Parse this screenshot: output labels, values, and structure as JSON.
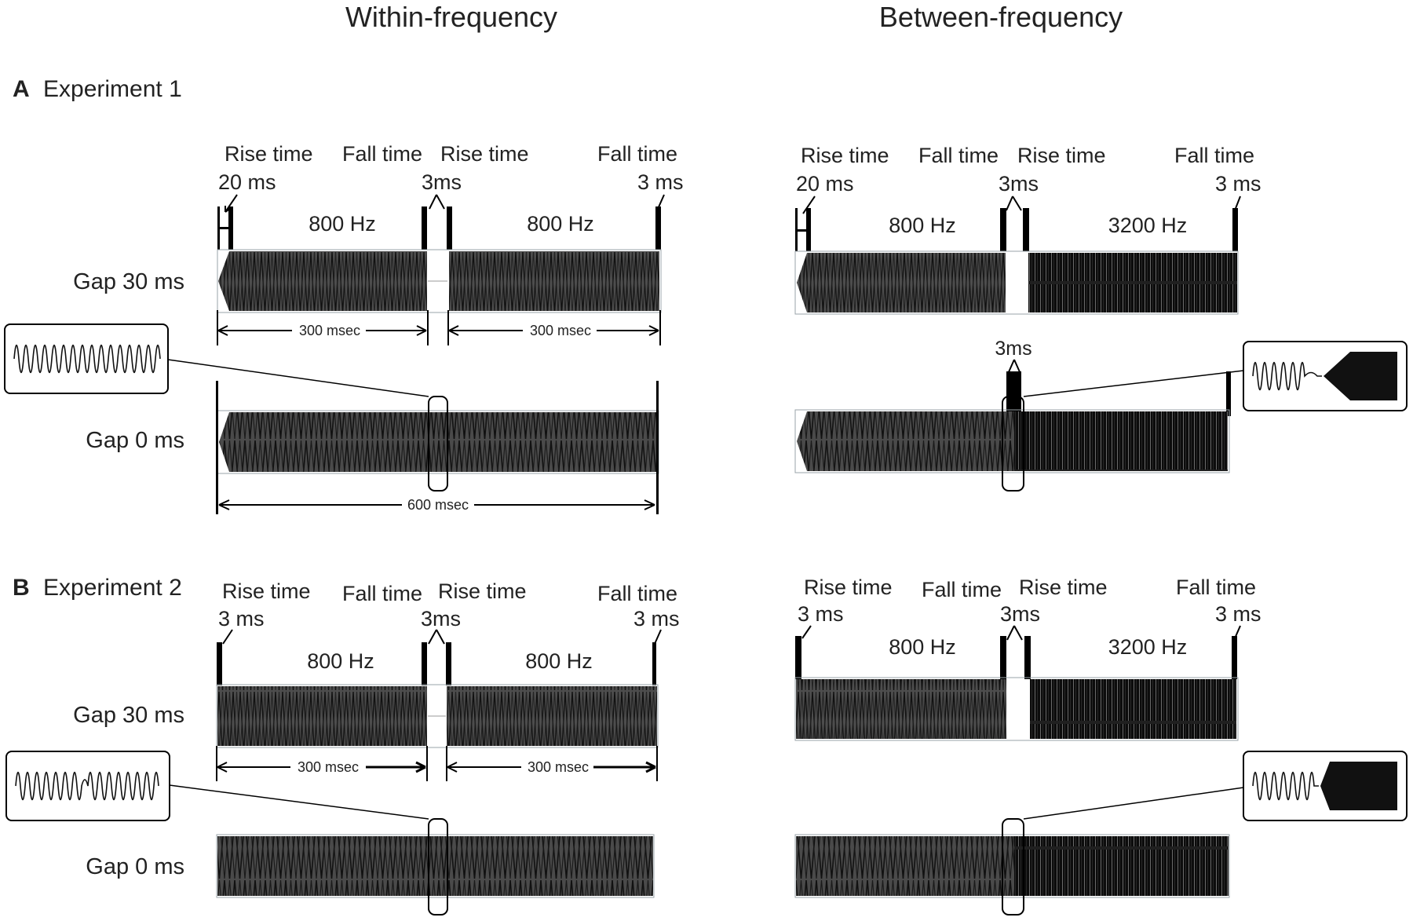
{
  "headers": {
    "within": "Within-frequency",
    "between": "Between-frequency"
  },
  "panels": [
    {
      "letter": "A",
      "title": "Experiment  1",
      "gap30_label": "Gap 30 ms",
      "gap0_label": "Gap 0 ms",
      "within": {
        "rise1_label": "Rise time",
        "rise1_val": "20 ms",
        "fall1_label": "Fall time",
        "fall1_val": "3ms",
        "rise2_label": "Rise time",
        "fall2_label": "Fall time",
        "fall2_val": "3 ms",
        "freq1": "800 Hz",
        "freq2": "800 Hz",
        "dur1": "300 msec",
        "dur2": "300 msec",
        "dur_total": "600 msec"
      },
      "between": {
        "rise1_label": "Rise time",
        "rise1_val": "20 ms",
        "fall1_label": "Fall time",
        "fall1_val": "3ms",
        "rise2_label": "Rise time",
        "fall2_label": "Fall time",
        "fall2_val": "3 ms",
        "freq1": "800 Hz",
        "freq2": "3200 Hz",
        "ramp_label": "3ms"
      }
    },
    {
      "letter": "B",
      "title": "Experiment  2",
      "gap30_label": "Gap 30 ms",
      "gap0_label": "Gap 0 ms",
      "within": {
        "rise1_label": "Rise time",
        "rise1_val": "3 ms",
        "fall1_label": "Fall time",
        "fall1_val": "3ms",
        "rise2_label": "Rise time",
        "fall2_label": "Fall time",
        "fall2_val": "3 ms",
        "freq1": "800 Hz",
        "freq2": "800 Hz",
        "dur1": "300 msec",
        "dur2": "300 msec"
      },
      "between": {
        "rise1_label": "Rise time",
        "rise1_val": "3 ms",
        "fall1_label": "Fall time",
        "fall1_val": "3ms",
        "rise2_label": "Rise time",
        "fall2_label": "Fall time",
        "fall2_val": "3 ms",
        "freq1": "800 Hz",
        "freq2": "3200 Hz"
      }
    }
  ]
}
